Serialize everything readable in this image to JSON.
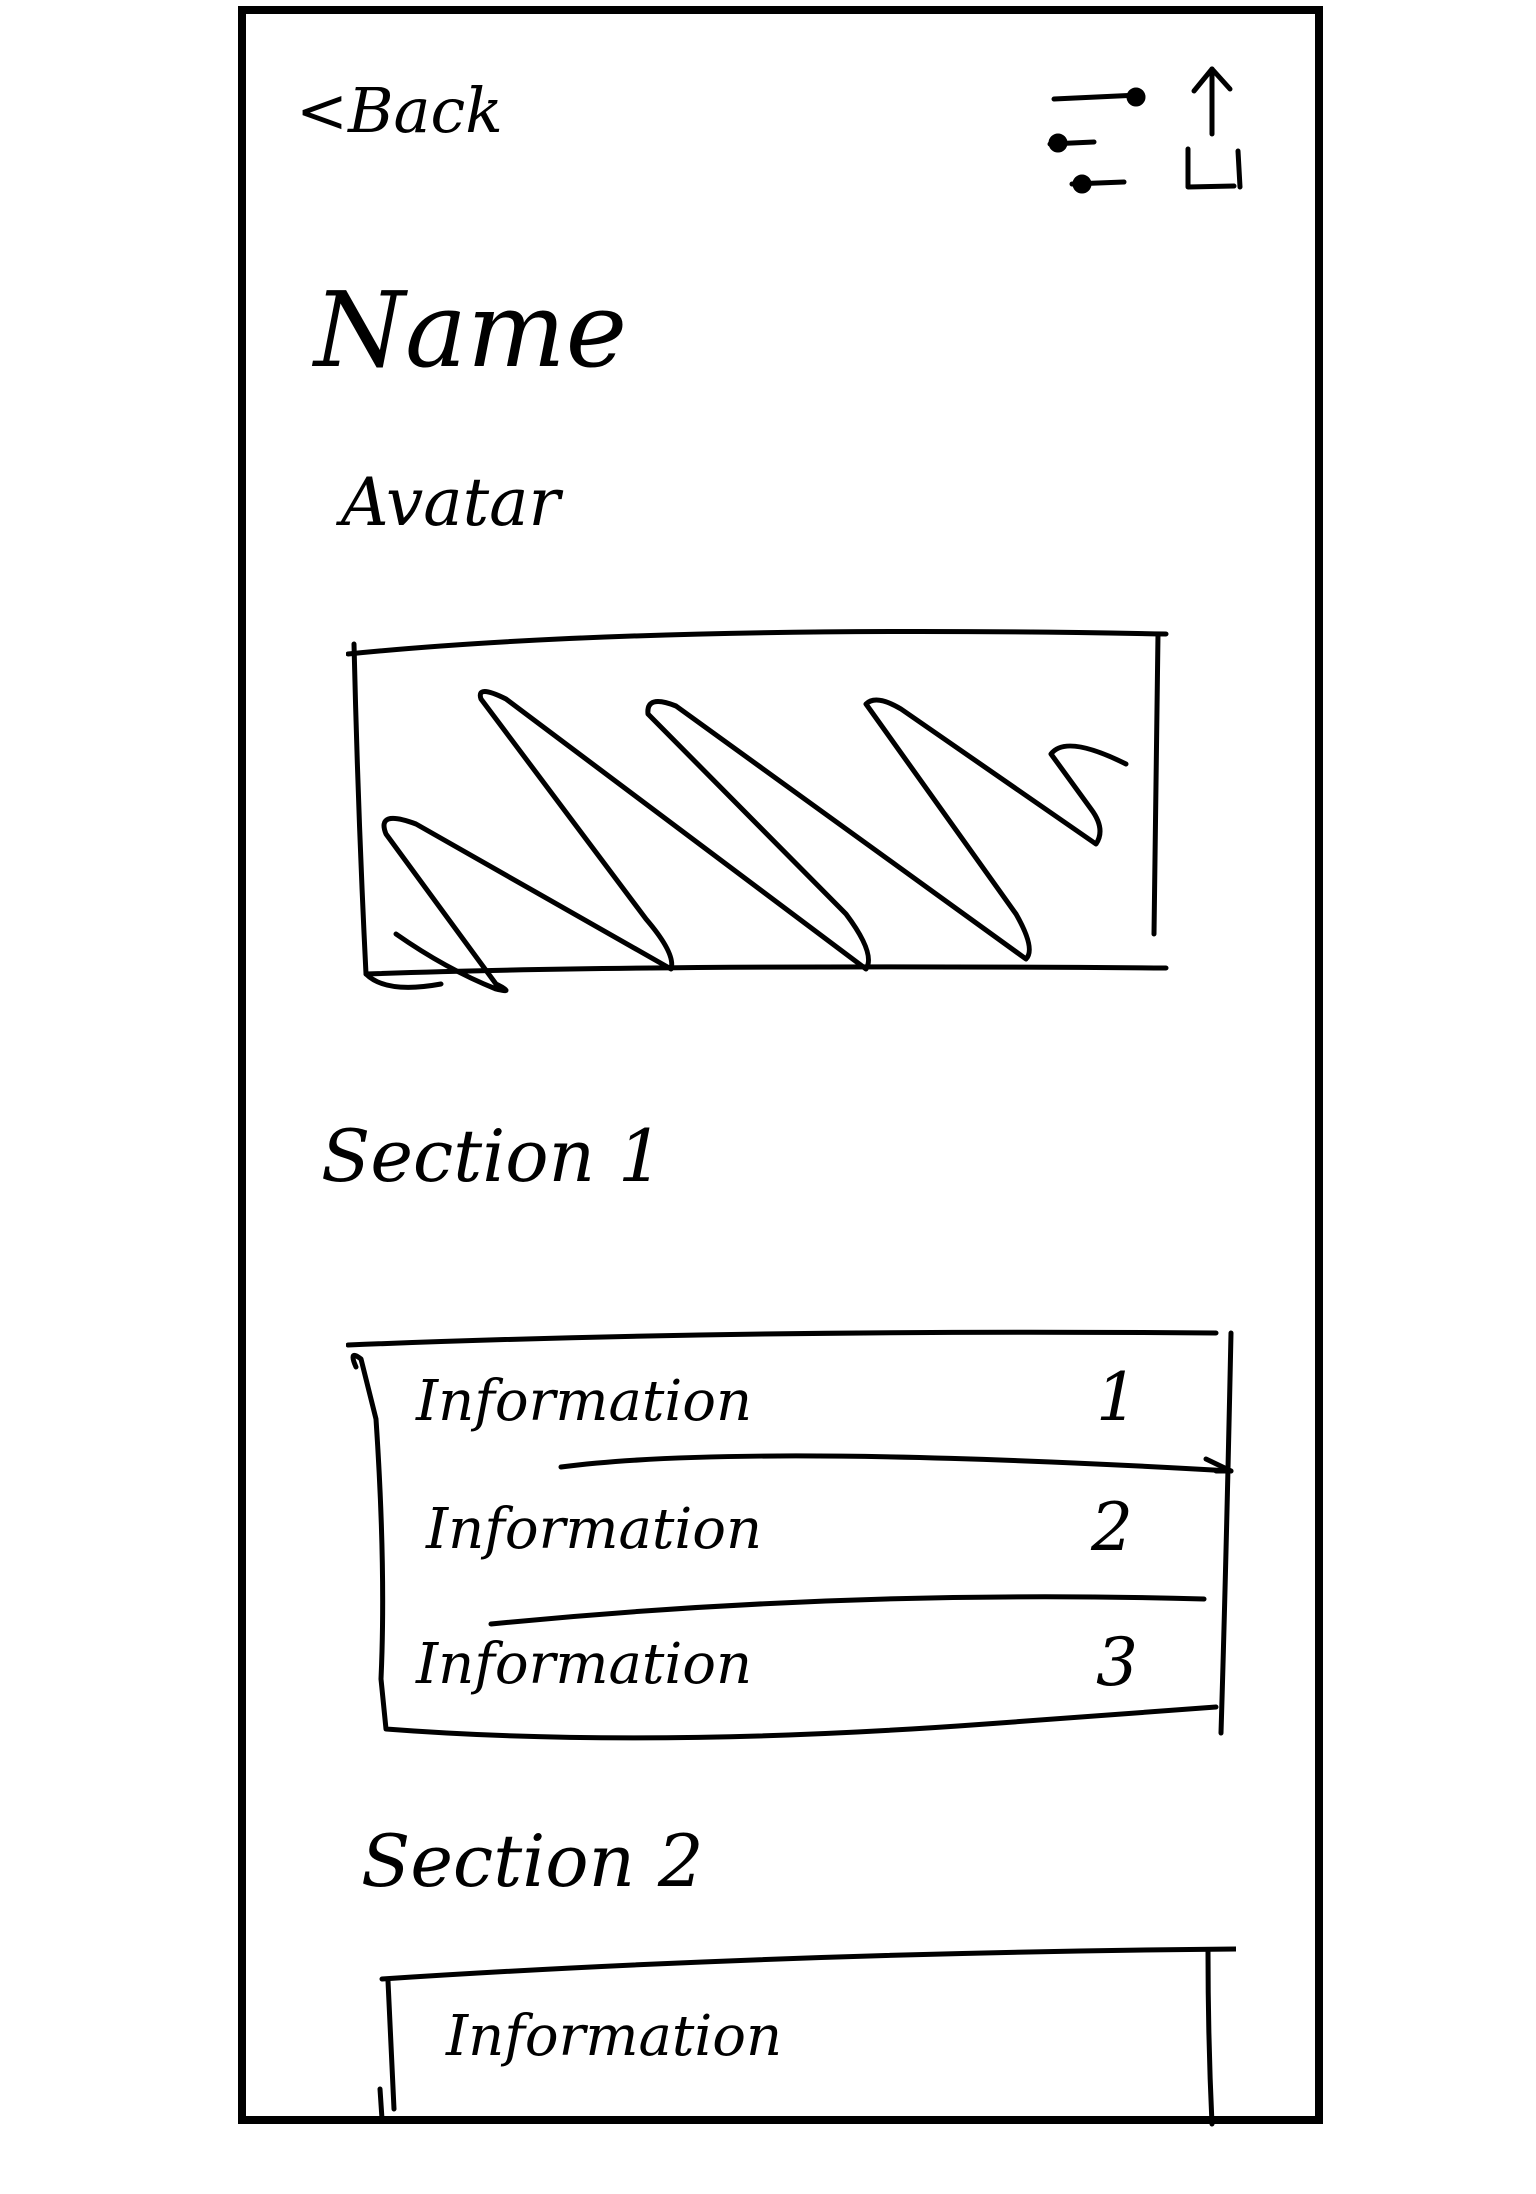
{
  "header": {
    "back_label": "<Back"
  },
  "profile": {
    "name": "Name",
    "avatar_label": "Avatar"
  },
  "sections": [
    {
      "title": "Section 1",
      "items": [
        {
          "label": "Information",
          "value": "1"
        },
        {
          "label": "Information",
          "value": "2"
        },
        {
          "label": "Information",
          "value": "3"
        }
      ]
    },
    {
      "title": "Section 2",
      "items": [
        {
          "label": "Information"
        }
      ]
    }
  ],
  "icons": {
    "filter": "sliders-icon",
    "share": "share-icon",
    "avatar": "image-placeholder"
  }
}
